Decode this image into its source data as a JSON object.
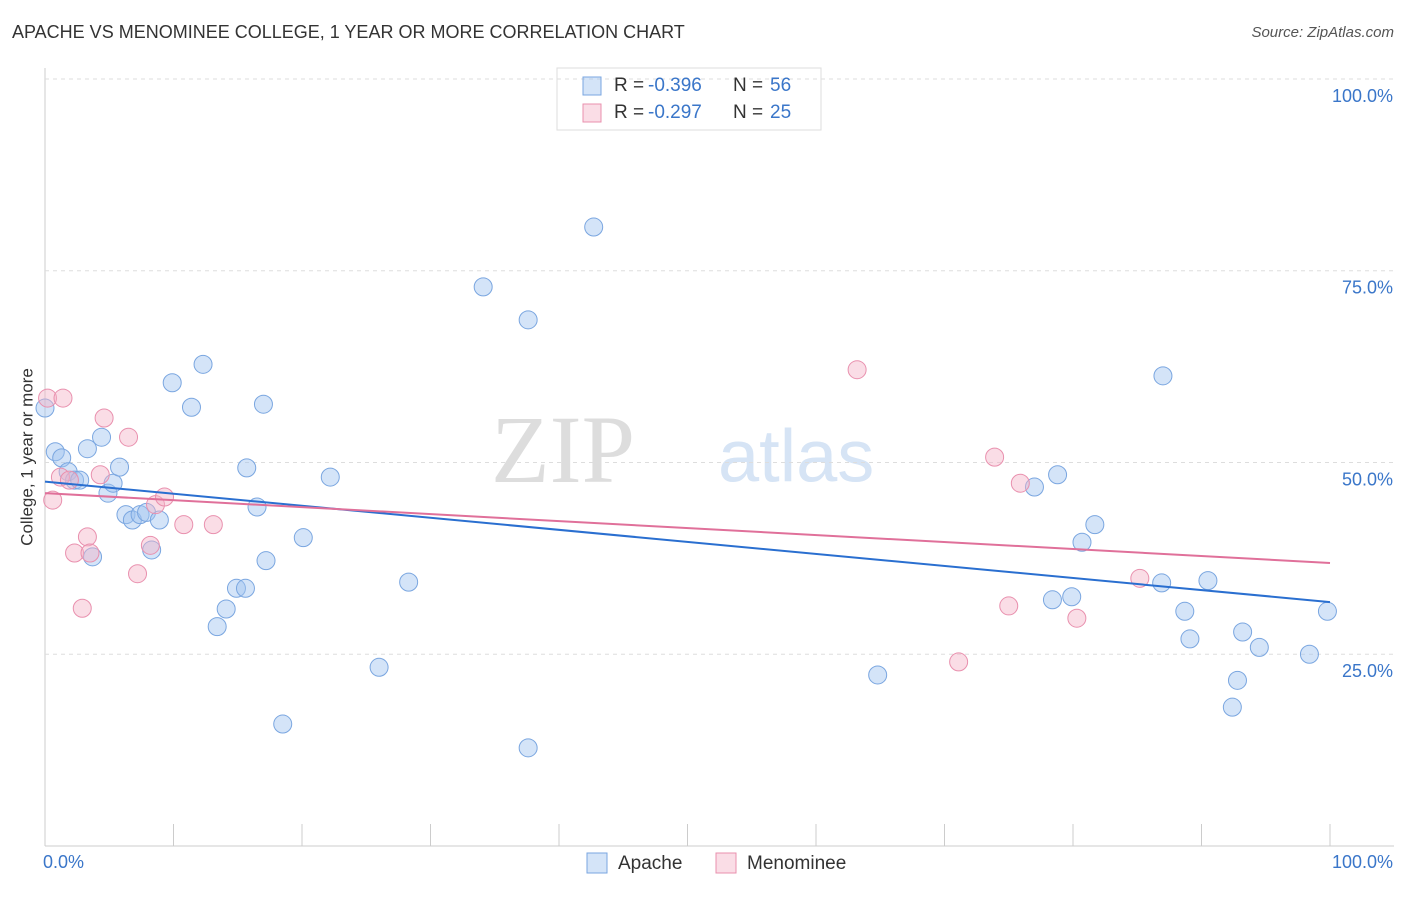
{
  "chart_data": {
    "type": "scatter",
    "title": "APACHE VS MENOMINEE COLLEGE, 1 YEAR OR MORE CORRELATION CHART",
    "source": "Source: ZipAtlas.com",
    "watermark": [
      "ZIP",
      "atlas"
    ],
    "y_label": "College, 1 year or more",
    "stat_labels": [
      "R =",
      "N ="
    ],
    "xlim": [
      0,
      100
    ],
    "ylim": [
      0,
      100
    ],
    "xticks": [
      {
        "value": 0,
        "label": "0.0%"
      },
      {
        "value": 100,
        "label": "100.0%"
      }
    ],
    "xminor_ticks": [
      10,
      20,
      30,
      40,
      50,
      60,
      70,
      80,
      90
    ],
    "yticks": [
      {
        "value": 25,
        "label": "25.0%"
      },
      {
        "value": 50,
        "label": "50.0%"
      },
      {
        "value": 75,
        "label": "75.0%"
      },
      {
        "value": 100,
        "label": "100.0%"
      }
    ],
    "grid": true,
    "series": [
      {
        "name": "Apache",
        "color": "#7aa6e0",
        "line_color": "#2a6fd0",
        "r": -0.396,
        "n": 56,
        "trend": [
          47.5,
          31.8
        ],
        "x": [
          0,
          0.8,
          1.3,
          1.8,
          2.3,
          2.7,
          3.3,
          4.4,
          4.9,
          5.3,
          5.8,
          3.7,
          6.3,
          6.8,
          7.4,
          7.9,
          8.3,
          8.9,
          9.9,
          11.4,
          12.3,
          13.4,
          14.1,
          14.9,
          15.6,
          15.7,
          16.5,
          17.0,
          17.2,
          18.5,
          20.1,
          22.2,
          26.0,
          28.3,
          34.1,
          37.6,
          37.6,
          42.7,
          64.8,
          77.0,
          78.8,
          78.4,
          79.9,
          80.7,
          81.7,
          87.0,
          86.9,
          90.5,
          88.7,
          89.1,
          93.2,
          94.5,
          92.8,
          92.4,
          98.4,
          99.8
        ],
        "values": [
          57.1,
          51.4,
          50.6,
          48.8,
          47.7,
          47.7,
          51.8,
          53.3,
          46.0,
          47.3,
          49.4,
          37.7,
          43.2,
          42.5,
          43.2,
          43.5,
          38.6,
          42.5,
          60.4,
          57.2,
          62.8,
          28.6,
          30.9,
          33.6,
          33.6,
          49.3,
          44.2,
          57.6,
          37.2,
          15.9,
          40.2,
          48.1,
          23.3,
          34.4,
          72.9,
          68.6,
          12.8,
          80.7,
          22.3,
          46.8,
          48.4,
          32.1,
          32.5,
          39.6,
          41.9,
          61.3,
          34.3,
          34.6,
          30.6,
          27.0,
          27.9,
          25.9,
          21.6,
          18.1,
          25.0,
          30.6
        ]
      },
      {
        "name": "Menominee",
        "color": "#e990ae",
        "line_color": "#e0709a",
        "r": -0.297,
        "n": 25,
        "trend": [
          46.0,
          36.9
        ],
        "x": [
          0.2,
          0.6,
          1.4,
          1.2,
          1.9,
          2.3,
          2.9,
          3.3,
          3.5,
          4.3,
          4.6,
          6.5,
          7.2,
          8.2,
          8.6,
          9.3,
          10.8,
          13.1,
          63.2,
          71.1,
          73.9,
          75.0,
          75.9,
          80.3,
          85.2
        ],
        "values": [
          58.4,
          45.1,
          58.4,
          48.1,
          47.7,
          38.2,
          31.0,
          40.3,
          38.2,
          48.4,
          55.8,
          53.3,
          35.5,
          39.2,
          44.5,
          45.5,
          41.9,
          41.9,
          62.1,
          24.0,
          50.7,
          31.3,
          47.3,
          29.7,
          34.9
        ]
      }
    ]
  }
}
